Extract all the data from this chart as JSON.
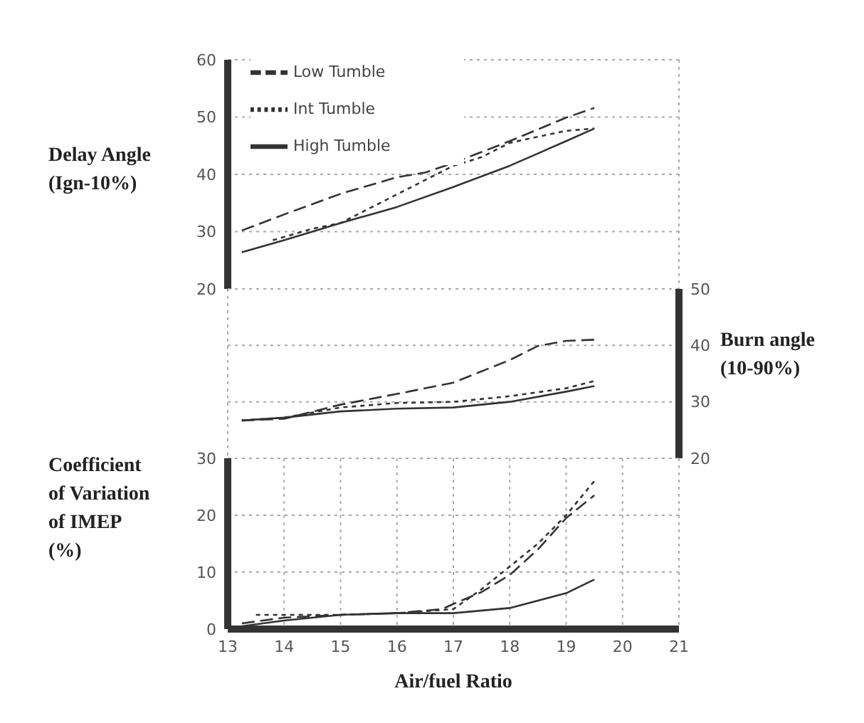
{
  "chart_data": [
    {
      "type": "line",
      "ylabel": "Delay Angle (Ign-10%)",
      "xlim": [
        13,
        21
      ],
      "xticks": [
        13,
        14,
        15,
        16,
        17,
        18,
        19,
        20,
        21
      ],
      "ylim": [
        20,
        60
      ],
      "yticks": [
        20,
        30,
        40,
        50,
        60
      ],
      "grid": true,
      "legend": "top left",
      "tick_labels": "y",
      "series": [
        {
          "name": "Low Tumble",
          "color": "#333333",
          "line_style": "dashed",
          "x": [
            13.25,
            14,
            15,
            16,
            16.5,
            17,
            18,
            19,
            19.5
          ],
          "values": [
            30.2,
            33,
            36.6,
            39.5,
            40.3,
            42,
            45.8,
            49.9,
            51.6
          ]
        },
        {
          "name": "Int  Tumble",
          "color": "#333333",
          "line_style": "dotted",
          "x": [
            13.8,
            14.5,
            15,
            16,
            17,
            17.5,
            18,
            19,
            19.5
          ],
          "values": [
            28.5,
            30.5,
            31.5,
            36.5,
            41.5,
            43,
            45.5,
            47.6,
            48
          ]
        },
        {
          "name": "High Tumble",
          "color": "#333333",
          "line_style": "solid",
          "x": [
            13.25,
            14,
            15,
            16,
            17,
            18,
            19,
            19.5
          ],
          "values": [
            26.4,
            28.5,
            31.5,
            34.3,
            37.8,
            41.5,
            45.8,
            48
          ]
        }
      ]
    },
    {
      "type": "line",
      "y2label": "Burn angle (10-90%)",
      "xlim": [
        13,
        21
      ],
      "xticks": [
        13,
        14,
        15,
        16,
        17,
        18,
        19,
        20,
        21
      ],
      "y2lim": [
        20,
        50
      ],
      "y2ticks": [
        20,
        30,
        40,
        50
      ],
      "grid": true,
      "tick_labels": "y",
      "series": [
        {
          "color": "#333333",
          "line_style": "dashed",
          "axis": "y2",
          "x": [
            13.25,
            14,
            15,
            16,
            17,
            18,
            18.5,
            19,
            19.5
          ],
          "values": [
            26.7,
            27,
            29.5,
            31.4,
            33.4,
            37.4,
            39.9,
            40.8,
            41
          ]
        },
        {
          "color": "#333333",
          "line_style": "dotted",
          "axis": "y2",
          "x": [
            13.25,
            14,
            15,
            16,
            17,
            18,
            19,
            19.5
          ],
          "values": [
            26.7,
            27.2,
            29,
            29.8,
            30,
            31,
            32.4,
            33.7
          ]
        },
        {
          "color": "#333333",
          "line_style": "solid",
          "axis": "y2",
          "x": [
            13.25,
            14,
            15,
            16,
            17,
            18,
            19,
            19.5
          ],
          "values": [
            26.7,
            27.2,
            28.3,
            28.8,
            29,
            30,
            31.8,
            32.8
          ]
        }
      ]
    },
    {
      "type": "line",
      "ylabel": "Coefficient of Variation of IMEP (%)",
      "xlabel": "Air/fuel Ratio",
      "xlim": [
        13,
        21
      ],
      "xticks": [
        13,
        14,
        15,
        16,
        17,
        18,
        19,
        20,
        21
      ],
      "ylim": [
        0,
        30
      ],
      "yticks": [
        0,
        10,
        20,
        30
      ],
      "grid": true,
      "series": [
        {
          "color": "#333333",
          "line_style": "dashed",
          "x": [
            13.25,
            14,
            15,
            16,
            16.8,
            17,
            17.5,
            18,
            18.5,
            19,
            19.5
          ],
          "values": [
            1,
            2,
            2.5,
            2.8,
            3.5,
            4.4,
            6.5,
            9.5,
            14,
            19.5,
            23.5
          ]
        },
        {
          "color": "#333333",
          "line_style": "dotted",
          "x": [
            13.5,
            14,
            15,
            16,
            17,
            17.5,
            18,
            18.5,
            19,
            19.5
          ],
          "values": [
            2.5,
            2.5,
            2.5,
            2.8,
            3.5,
            7,
            11,
            15,
            20,
            26
          ]
        },
        {
          "color": "#333333",
          "line_style": "solid",
          "x": [
            13.25,
            14,
            15,
            16,
            17,
            18,
            19,
            19.5
          ],
          "values": [
            0.5,
            1.5,
            2.5,
            2.8,
            2.8,
            3.7,
            6.3,
            8.7
          ]
        }
      ]
    }
  ]
}
